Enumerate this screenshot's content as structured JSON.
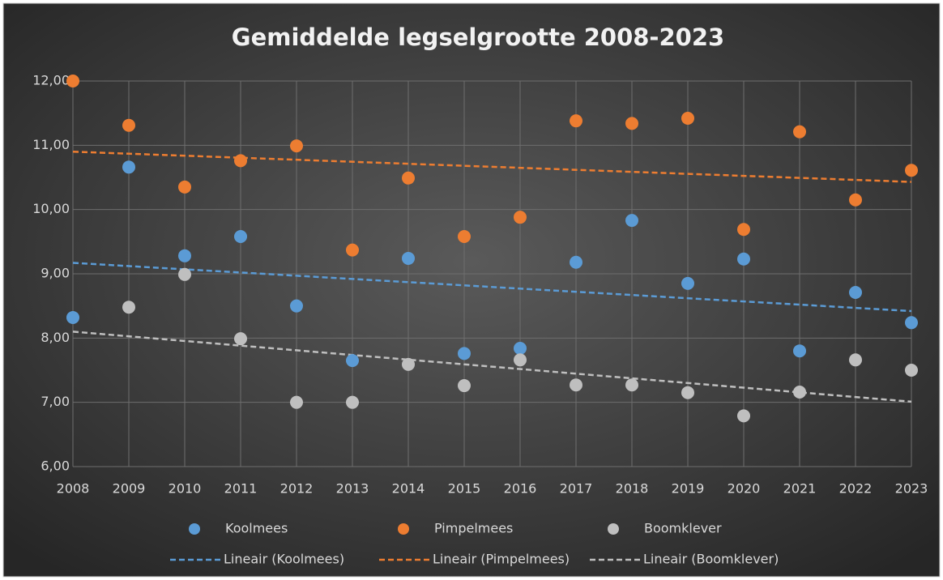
{
  "chart_data": {
    "type": "scatter",
    "title": "Gemiddelde legselgrootte 2008-2023",
    "x": [
      2008,
      2009,
      2010,
      2011,
      2012,
      2013,
      2014,
      2015,
      2016,
      2017,
      2018,
      2019,
      2020,
      2021,
      2022,
      2023
    ],
    "series": [
      {
        "name": "Koolmees",
        "color": "#5b9bd5",
        "values": [
          8.32,
          10.66,
          9.28,
          9.58,
          8.5,
          7.65,
          9.24,
          7.76,
          7.84,
          9.18,
          9.83,
          8.85,
          9.23,
          7.8,
          8.71,
          8.24
        ]
      },
      {
        "name": "Pimpelmees",
        "color": "#ed7d31",
        "values": [
          12.0,
          11.31,
          10.35,
          10.76,
          10.99,
          9.37,
          10.49,
          9.58,
          9.88,
          11.38,
          11.34,
          11.42,
          9.69,
          11.21,
          10.15,
          10.61
        ]
      },
      {
        "name": "Boomklever",
        "color": "#bfbfbf",
        "values": [
          null,
          8.48,
          8.99,
          7.99,
          7.0,
          7.0,
          7.59,
          7.26,
          7.66,
          7.27,
          7.27,
          7.15,
          6.79,
          7.16,
          7.66,
          7.5
        ]
      }
    ],
    "trendlines": [
      {
        "name": "Lineair (Koolmees)",
        "color": "#5b9bd5",
        "x": [
          2008,
          2023
        ],
        "values": [
          9.17,
          8.42
        ]
      },
      {
        "name": "Lineair (Pimpelmees)",
        "color": "#ed7d31",
        "x": [
          2008,
          2023
        ],
        "values": [
          10.9,
          10.43
        ]
      },
      {
        "name": "Lineair (Boomklever)",
        "color": "#bfbfbf",
        "x": [
          2008,
          2023
        ],
        "values": [
          8.1,
          7.01
        ]
      }
    ],
    "xlim": [
      2008,
      2023
    ],
    "xticks": [
      2008,
      2009,
      2010,
      2011,
      2012,
      2013,
      2014,
      2015,
      2016,
      2017,
      2018,
      2019,
      2020,
      2021,
      2022,
      2023
    ],
    "ylim": [
      6,
      12
    ],
    "yticks": [
      {
        "value": 6,
        "label": "6,00"
      },
      {
        "value": 7,
        "label": "7,00"
      },
      {
        "value": 8,
        "label": "8,00"
      },
      {
        "value": 9,
        "label": "9,00"
      },
      {
        "value": 10,
        "label": "10,00"
      },
      {
        "value": 11,
        "label": "11,00"
      },
      {
        "value": 12,
        "label": "12,00"
      }
    ],
    "grid": true,
    "legend": "bottom"
  }
}
